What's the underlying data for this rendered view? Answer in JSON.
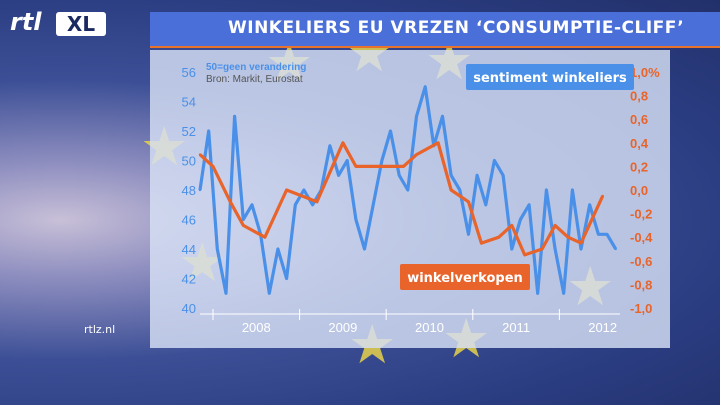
{
  "header": {
    "logo_rtl": "rtl",
    "logo_xl": "XL",
    "title": "WINKELIERS EU VREZEN ‘CONSUMPTIE-CLIFF’"
  },
  "footer": {
    "site": "rtlz.nl"
  },
  "colors": {
    "title_bar": "#4a6fd8",
    "series_sentiment": "#4a90e8",
    "series_sales": "#e8642b"
  },
  "chart_data": {
    "type": "line",
    "subtitle": "50=geen verandering",
    "source": "Bron: Markit, Eurostat",
    "x_labels": [
      "2008",
      "2009",
      "2010",
      "2011",
      "2012"
    ],
    "y_left": {
      "ylim": [
        40,
        56
      ],
      "ticks": [
        "56",
        "54",
        "52",
        "50",
        "48",
        "46",
        "44",
        "42",
        "40"
      ]
    },
    "y_right": {
      "ylim": [
        -1.0,
        1.0
      ],
      "ticks": [
        "1,0%",
        "0,8",
        "0,6",
        "0,4",
        "0,2",
        "0,0",
        "-0,2",
        "-0,4",
        "-0,6",
        "-0,8",
        "-1,0"
      ]
    },
    "series": [
      {
        "name": "sentiment winkeliers",
        "axis": "left",
        "x": [
          2007.8,
          2007.9,
          2008.0,
          2008.1,
          2008.2,
          2008.3,
          2008.4,
          2008.5,
          2008.6,
          2008.7,
          2008.8,
          2008.9,
          2009.0,
          2009.1,
          2009.2,
          2009.3,
          2009.4,
          2009.5,
          2009.6,
          2009.7,
          2009.8,
          2009.9,
          2010.0,
          2010.1,
          2010.2,
          2010.3,
          2010.4,
          2010.5,
          2010.6,
          2010.7,
          2010.8,
          2010.9,
          2011.0,
          2011.1,
          2011.2,
          2011.3,
          2011.4,
          2011.5,
          2011.6,
          2011.7,
          2011.8,
          2011.9,
          2012.0,
          2012.1,
          2012.2,
          2012.3,
          2012.4,
          2012.5,
          2012.6
        ],
        "values": [
          48,
          52,
          44,
          41,
          53,
          46,
          47,
          45,
          41,
          44,
          42,
          47,
          48,
          47,
          48,
          51,
          49,
          50,
          46,
          44,
          47,
          50,
          52,
          49,
          48,
          53,
          55,
          51,
          53,
          49,
          48,
          45,
          49,
          47,
          50,
          49,
          44,
          46,
          47,
          41,
          48,
          44,
          41,
          48,
          44,
          47,
          45,
          45,
          44
        ]
      },
      {
        "name": "winkelverkopen",
        "axis": "right",
        "x": [
          2007.8,
          2007.95,
          2008.15,
          2008.3,
          2008.55,
          2008.8,
          2009.15,
          2009.45,
          2009.6,
          2009.95,
          2010.15,
          2010.3,
          2010.55,
          2010.7,
          2010.9,
          2011.05,
          2011.25,
          2011.4,
          2011.55,
          2011.75,
          2011.9,
          2012.05,
          2012.2,
          2012.45
        ],
        "values": [
          0.3,
          0.2,
          -0.1,
          -0.3,
          -0.4,
          0.0,
          -0.1,
          0.4,
          0.2,
          0.2,
          0.2,
          0.3,
          0.4,
          0.0,
          -0.1,
          -0.45,
          -0.4,
          -0.3,
          -0.55,
          -0.5,
          -0.3,
          -0.4,
          -0.45,
          -0.05
        ]
      }
    ]
  }
}
